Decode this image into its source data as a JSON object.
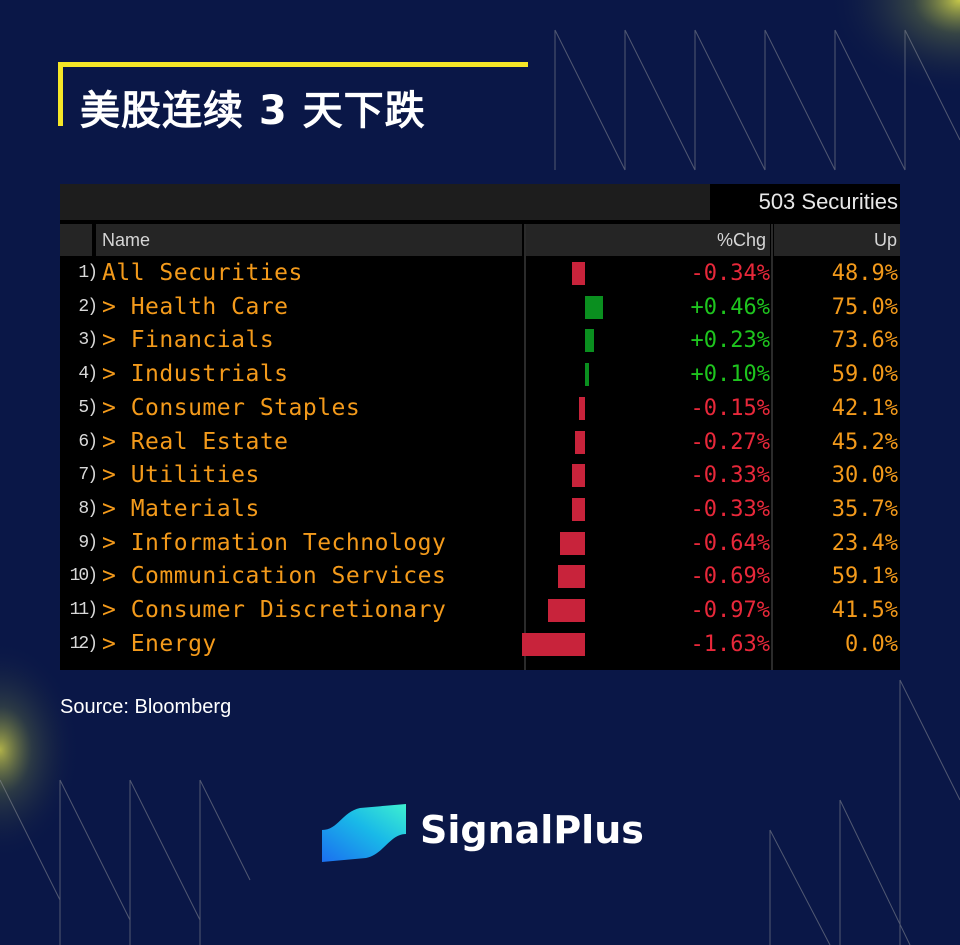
{
  "title": "美股连续 3 天下跌",
  "securities_count": "503 Securities",
  "headers": {
    "name": "Name",
    "chg": "%Chg",
    "up": "Up"
  },
  "rows": [
    {
      "num": "1)",
      "name": "All Securities",
      "chg_label": "-0.34%",
      "chg": -0.34,
      "up": "48.9%"
    },
    {
      "num": "2)",
      "name": "> Health Care",
      "chg_label": "+0.46%",
      "chg": 0.46,
      "up": "75.0%"
    },
    {
      "num": "3)",
      "name": "> Financials",
      "chg_label": "+0.23%",
      "chg": 0.23,
      "up": "73.6%"
    },
    {
      "num": "4)",
      "name": "> Industrials",
      "chg_label": "+0.10%",
      "chg": 0.1,
      "up": "59.0%"
    },
    {
      "num": "5)",
      "name": "> Consumer Staples",
      "chg_label": "-0.15%",
      "chg": -0.15,
      "up": "42.1%"
    },
    {
      "num": "6)",
      "name": "> Real Estate",
      "chg_label": "-0.27%",
      "chg": -0.27,
      "up": "45.2%"
    },
    {
      "num": "7)",
      "name": "> Utilities",
      "chg_label": "-0.33%",
      "chg": -0.33,
      "up": "30.0%"
    },
    {
      "num": "8)",
      "name": "> Materials",
      "chg_label": "-0.33%",
      "chg": -0.33,
      "up": "35.7%"
    },
    {
      "num": "9)",
      "name": "> Information Technology",
      "chg_label": "-0.64%",
      "chg": -0.64,
      "up": "23.4%"
    },
    {
      "num": "10)",
      "name": "> Communication Services",
      "chg_label": "-0.69%",
      "chg": -0.69,
      "up": "59.1%"
    },
    {
      "num": "11)",
      "name": "> Consumer Discretionary",
      "chg_label": "-0.97%",
      "chg": -0.97,
      "up": "41.5%"
    },
    {
      "num": "12)",
      "name": "> Energy",
      "chg_label": "-1.63%",
      "chg": -1.63,
      "up": "0.0%"
    }
  ],
  "colors": {
    "positive": "#1ec51e",
    "negative": "#e8283a",
    "positive_bar": "#0a8f1f",
    "negative_bar": "#c8233b",
    "name_text": "#f39a1b",
    "accent_yellow": "#f5e627",
    "background": "#0a1747"
  },
  "source": "Source: Bloomberg",
  "brand": {
    "name": "SignalPlus",
    "logo_icon": "signalplus-wave-icon"
  }
}
